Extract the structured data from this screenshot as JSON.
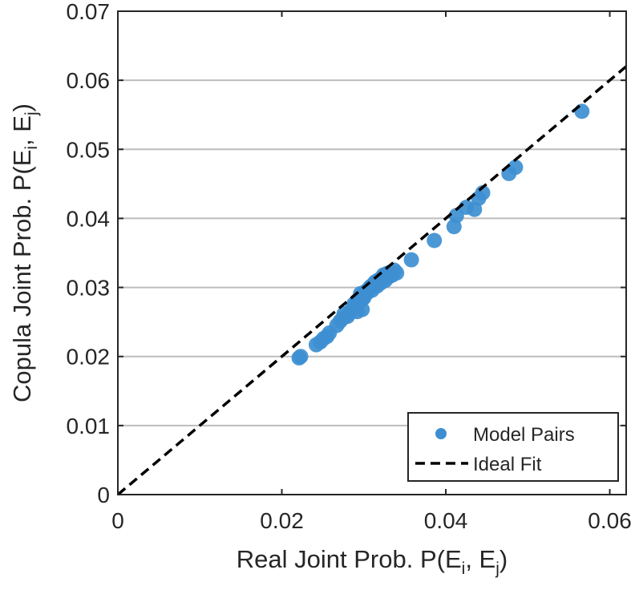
{
  "chart_data": {
    "type": "scatter",
    "title": "",
    "xlabel": {
      "main": "Real Joint Prob. P(E",
      "sub1": "i",
      "mid": ", E",
      "sub2": "j",
      "end": ")"
    },
    "ylabel": {
      "main": "Copula Joint Prob. P(E",
      "sub1": "i",
      "mid": ", E",
      "sub2": "j",
      "end": ")"
    },
    "xlim": [
      0,
      0.062
    ],
    "ylim": [
      0,
      0.07
    ],
    "xticks": [
      0,
      0.02,
      0.04,
      0.06
    ],
    "yticks": [
      0,
      0.01,
      0.02,
      0.03,
      0.04,
      0.05,
      0.06,
      0.07
    ],
    "xtick_labels": [
      "0",
      "0.02",
      "0.04",
      "0.06"
    ],
    "ytick_labels": [
      "0",
      "0.01",
      "0.02",
      "0.03",
      "0.04",
      "0.05",
      "0.06",
      "0.07"
    ],
    "grid": "horizontal",
    "legend_position": "bottom-right",
    "series": [
      {
        "name": "Model Pairs",
        "color": "#3d8fd1",
        "marker": "circle",
        "points": [
          [
            0.0221,
            0.0198
          ],
          [
            0.0223,
            0.02
          ],
          [
            0.0242,
            0.0217
          ],
          [
            0.0247,
            0.0221
          ],
          [
            0.0251,
            0.0226
          ],
          [
            0.0255,
            0.0229
          ],
          [
            0.0258,
            0.0234
          ],
          [
            0.0267,
            0.0245
          ],
          [
            0.0271,
            0.0251
          ],
          [
            0.0274,
            0.0255
          ],
          [
            0.0276,
            0.0262
          ],
          [
            0.028,
            0.0258
          ],
          [
            0.0283,
            0.0263
          ],
          [
            0.0286,
            0.027
          ],
          [
            0.0288,
            0.0276
          ],
          [
            0.029,
            0.0272
          ],
          [
            0.0292,
            0.0281
          ],
          [
            0.0294,
            0.0279
          ],
          [
            0.0296,
            0.0286
          ],
          [
            0.0298,
            0.0284
          ],
          [
            0.03,
            0.029
          ],
          [
            0.0302,
            0.0294
          ],
          [
            0.0298,
            0.0268
          ],
          [
            0.0304,
            0.0292
          ],
          [
            0.0306,
            0.0298
          ],
          [
            0.0308,
            0.0301
          ],
          [
            0.031,
            0.0296
          ],
          [
            0.0312,
            0.0305
          ],
          [
            0.0314,
            0.0308
          ],
          [
            0.0316,
            0.0302
          ],
          [
            0.0318,
            0.0311
          ],
          [
            0.032,
            0.0306
          ],
          [
            0.0322,
            0.0314
          ],
          [
            0.0324,
            0.0318
          ],
          [
            0.0326,
            0.031
          ],
          [
            0.0328,
            0.032
          ],
          [
            0.033,
            0.0315
          ],
          [
            0.0332,
            0.0322
          ],
          [
            0.0335,
            0.0318
          ],
          [
            0.0337,
            0.0325
          ],
          [
            0.034,
            0.0321
          ],
          [
            0.03,
            0.0285
          ],
          [
            0.0296,
            0.0291
          ],
          [
            0.0292,
            0.0265
          ],
          [
            0.0358,
            0.034
          ],
          [
            0.0386,
            0.0368
          ],
          [
            0.041,
            0.0388
          ],
          [
            0.0413,
            0.0404
          ],
          [
            0.0425,
            0.0416
          ],
          [
            0.0435,
            0.0413
          ],
          [
            0.044,
            0.0429
          ],
          [
            0.0445,
            0.0437
          ],
          [
            0.0477,
            0.0465
          ],
          [
            0.0485,
            0.0474
          ],
          [
            0.0566,
            0.0555
          ]
        ]
      },
      {
        "name": "Ideal Fit",
        "color": "#000000",
        "line": "dashed",
        "points": [
          [
            0,
            0
          ],
          [
            0.062,
            0.062
          ]
        ]
      }
    ]
  }
}
